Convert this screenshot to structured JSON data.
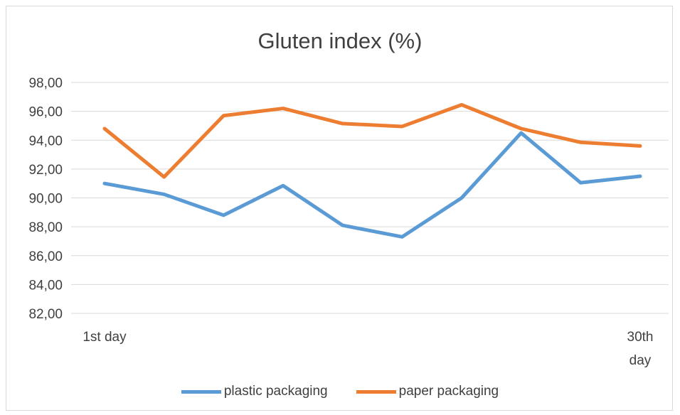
{
  "colors": {
    "plastic": "#5b9bd5",
    "paper": "#ed7d31",
    "grid": "#d9d9d9",
    "text": "#404040"
  },
  "chart_data": {
    "type": "line",
    "title": "Gluten index (%)",
    "xlabel": "",
    "ylabel": "",
    "ylim": [
      82,
      98
    ],
    "yticks": [
      "98,00",
      "96,00",
      "94,00",
      "92,00",
      "90,00",
      "88,00",
      "86,00",
      "84,00",
      "82,00"
    ],
    "x_tick_labels": {
      "first": [
        "1st day"
      ],
      "last": [
        "30th",
        "day"
      ]
    },
    "point_count": 10,
    "grid": true,
    "legend_position": "bottom",
    "series": [
      {
        "name": "plastic packaging",
        "color": "#5b9bd5",
        "values": [
          91.0,
          90.25,
          88.8,
          90.85,
          88.1,
          87.3,
          90.0,
          94.5,
          91.05,
          91.5
        ]
      },
      {
        "name": "paper packaging",
        "color": "#ed7d31",
        "values": [
          94.8,
          91.45,
          95.7,
          96.2,
          95.15,
          94.95,
          96.45,
          94.8,
          93.85,
          93.6
        ]
      }
    ]
  }
}
